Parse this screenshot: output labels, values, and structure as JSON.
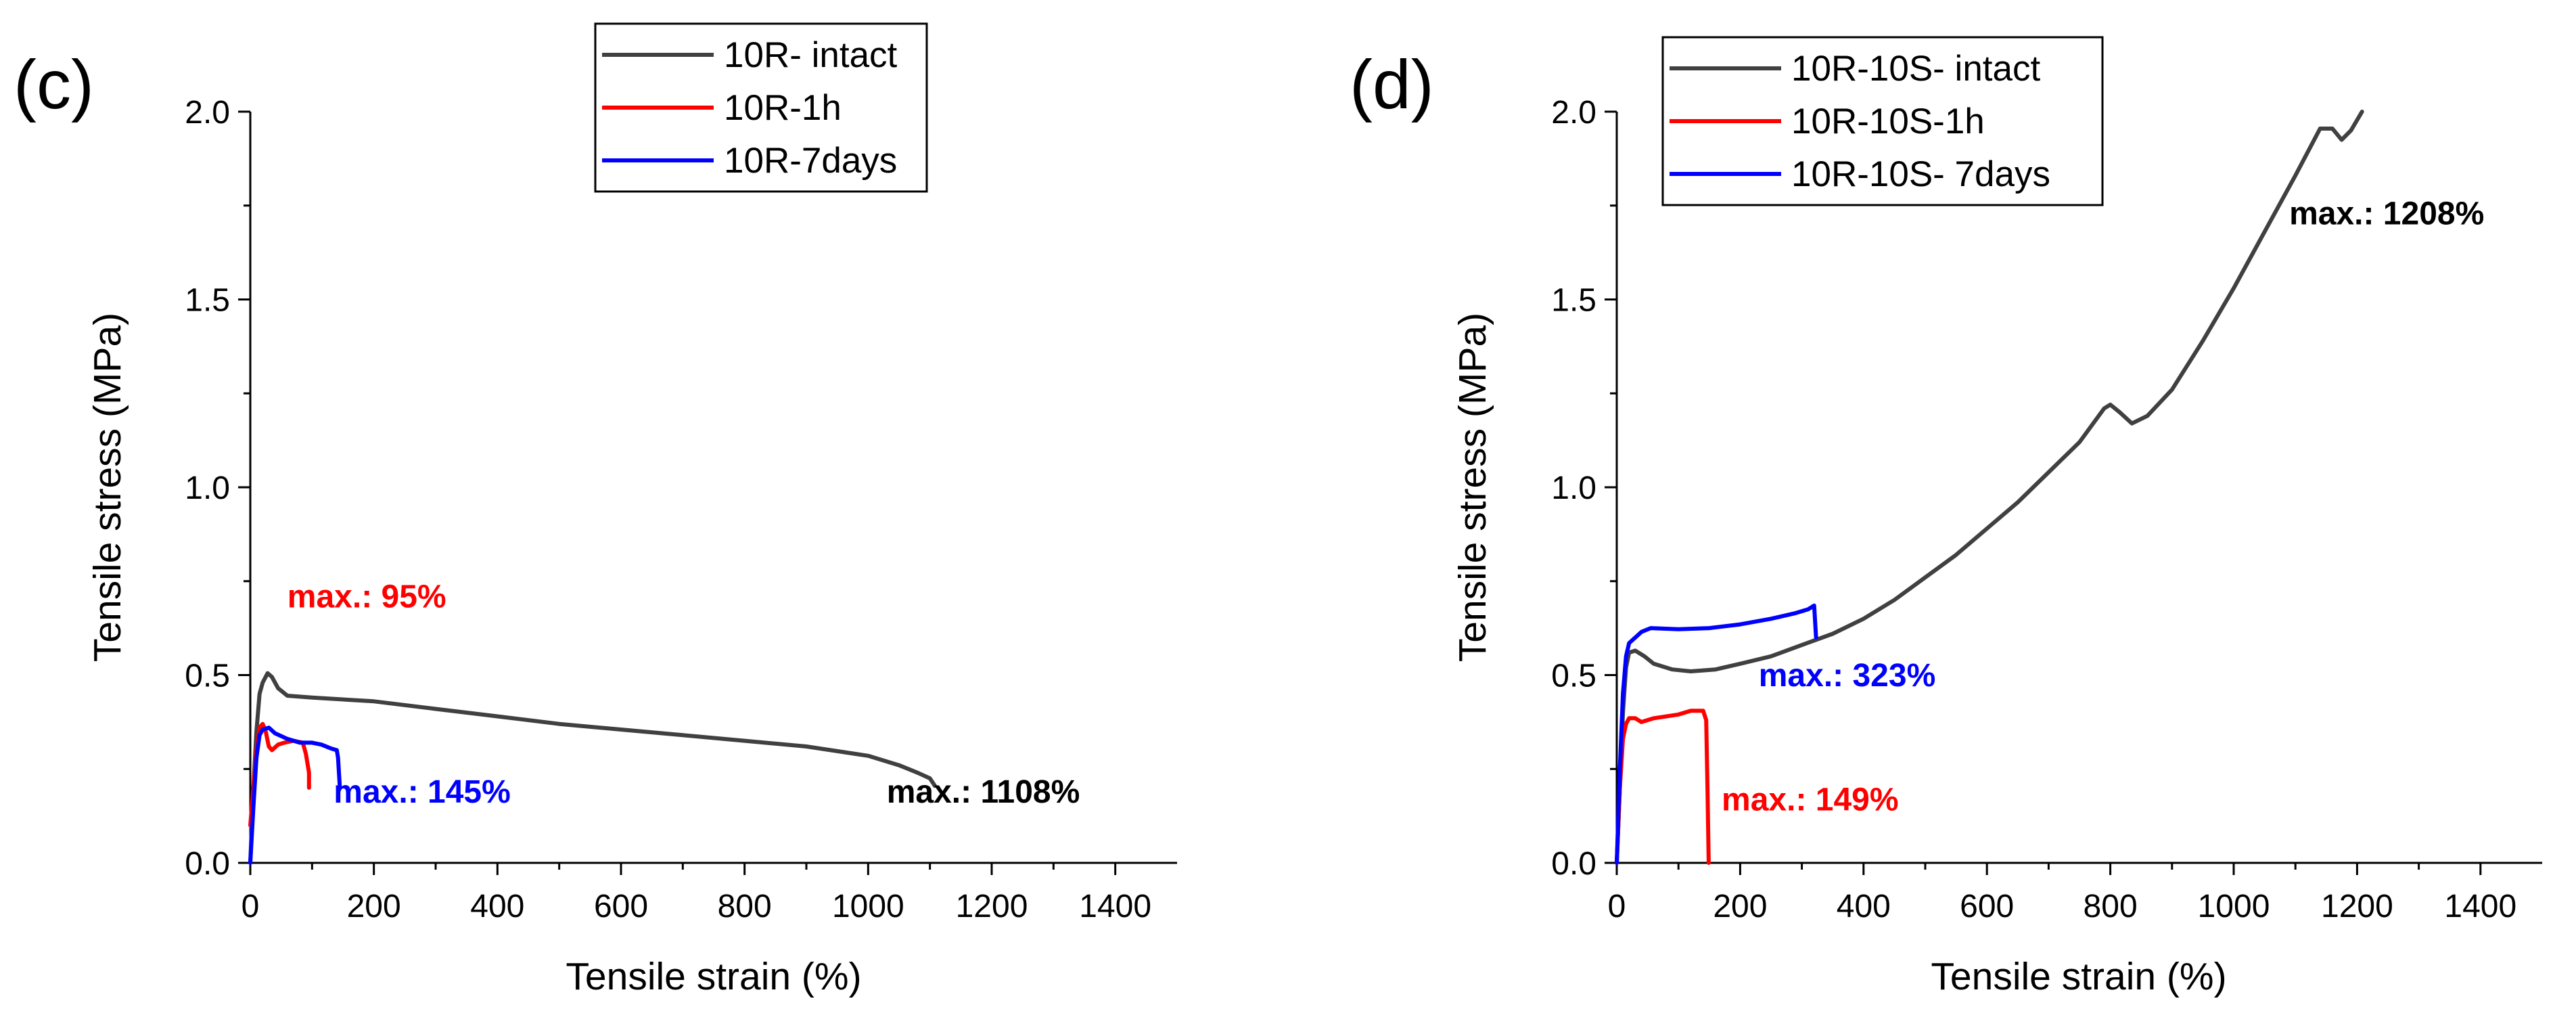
{
  "figure": {
    "chart_count": 2
  },
  "chart_data": [
    {
      "type": "line",
      "panel_label": "(c)",
      "xlabel": "Tensile strain (%)",
      "ylabel": "Tensile stress (MPa)",
      "xlim": [
        0,
        1500
      ],
      "ylim": [
        0,
        2.0
      ],
      "xticks": [
        0,
        200,
        400,
        600,
        800,
        1000,
        1200,
        1400
      ],
      "yticks": [
        0.0,
        0.5,
        1.0,
        1.5,
        2.0
      ],
      "xtick_labels": [
        "0",
        "200",
        "400",
        "600",
        "800",
        "1000",
        "1200",
        "1400"
      ],
      "ytick_labels": [
        "0.0",
        "0.5",
        "1.0",
        "1.5",
        "2.0"
      ],
      "legend_position": "top-center",
      "series": [
        {
          "name": "10R- intact",
          "color": "#404040",
          "points": [
            [
              0,
              0
            ],
            [
              5,
              0.2
            ],
            [
              10,
              0.35
            ],
            [
              15,
              0.45
            ],
            [
              20,
              0.48
            ],
            [
              28,
              0.505
            ],
            [
              35,
              0.495
            ],
            [
              45,
              0.465
            ],
            [
              60,
              0.445
            ],
            [
              100,
              0.44
            ],
            [
              200,
              0.43
            ],
            [
              300,
              0.41
            ],
            [
              400,
              0.39
            ],
            [
              500,
              0.37
            ],
            [
              600,
              0.355
            ],
            [
              700,
              0.34
            ],
            [
              800,
              0.325
            ],
            [
              900,
              0.31
            ],
            [
              1000,
              0.285
            ],
            [
              1050,
              0.26
            ],
            [
              1080,
              0.24
            ],
            [
              1100,
              0.225
            ],
            [
              1108,
              0.205
            ]
          ]
        },
        {
          "name": "10R-1h",
          "color": "#ff0000",
          "points": [
            [
              0,
              0.1
            ],
            [
              5,
              0.2
            ],
            [
              10,
              0.3
            ],
            [
              15,
              0.36
            ],
            [
              20,
              0.37
            ],
            [
              25,
              0.35
            ],
            [
              30,
              0.31
            ],
            [
              35,
              0.3
            ],
            [
              45,
              0.315
            ],
            [
              55,
              0.32
            ],
            [
              70,
              0.325
            ],
            [
              85,
              0.32
            ],
            [
              90,
              0.29
            ],
            [
              95,
              0.24
            ],
            [
              95,
              0.2
            ]
          ]
        },
        {
          "name": "10R-7days",
          "color": "#0000ff",
          "points": [
            [
              0,
              0
            ],
            [
              5,
              0.15
            ],
            [
              10,
              0.28
            ],
            [
              15,
              0.34
            ],
            [
              20,
              0.355
            ],
            [
              30,
              0.36
            ],
            [
              40,
              0.345
            ],
            [
              60,
              0.33
            ],
            [
              80,
              0.32
            ],
            [
              100,
              0.32
            ],
            [
              115,
              0.315
            ],
            [
              130,
              0.305
            ],
            [
              140,
              0.3
            ],
            [
              142,
              0.28
            ],
            [
              145,
              0.2
            ]
          ]
        }
      ],
      "annotations": [
        {
          "text": "max.: 95%",
          "x": 60,
          "y": 0.68,
          "color": "#ff0000"
        },
        {
          "text": "max.: 145%",
          "x": 135,
          "y": 0.16,
          "color": "#0000ff"
        },
        {
          "text": "max.: 1108%",
          "x": 1030,
          "y": 0.16,
          "color": "#000000"
        }
      ]
    },
    {
      "type": "line",
      "panel_label": "(d)",
      "xlabel": "Tensile strain (%)",
      "ylabel": "Tensile stress (MPa)",
      "xlim": [
        0,
        1500
      ],
      "ylim": [
        0,
        2.0
      ],
      "xticks": [
        0,
        200,
        400,
        600,
        800,
        1000,
        1200,
        1400
      ],
      "yticks": [
        0.0,
        0.5,
        1.0,
        1.5,
        2.0
      ],
      "xtick_labels": [
        "0",
        "200",
        "400",
        "600",
        "800",
        "1000",
        "1200",
        "1400"
      ],
      "ytick_labels": [
        "0.0",
        "0.5",
        "1.0",
        "1.5",
        "2.0"
      ],
      "legend_position": "top-left",
      "series": [
        {
          "name": "10R-10S- intact",
          "color": "#404040",
          "points": [
            [
              0,
              0
            ],
            [
              5,
              0.2
            ],
            [
              10,
              0.4
            ],
            [
              15,
              0.52
            ],
            [
              20,
              0.56
            ],
            [
              30,
              0.565
            ],
            [
              45,
              0.55
            ],
            [
              60,
              0.53
            ],
            [
              90,
              0.515
            ],
            [
              120,
              0.51
            ],
            [
              160,
              0.515
            ],
            [
              200,
              0.53
            ],
            [
              250,
              0.55
            ],
            [
              300,
              0.58
            ],
            [
              350,
              0.61
            ],
            [
              400,
              0.65
            ],
            [
              450,
              0.7
            ],
            [
              500,
              0.76
            ],
            [
              550,
              0.82
            ],
            [
              600,
              0.89
            ],
            [
              650,
              0.96
            ],
            [
              700,
              1.04
            ],
            [
              750,
              1.12
            ],
            [
              790,
              1.21
            ],
            [
              800,
              1.22
            ],
            [
              815,
              1.2
            ],
            [
              835,
              1.17
            ],
            [
              860,
              1.19
            ],
            [
              900,
              1.26
            ],
            [
              950,
              1.39
            ],
            [
              1000,
              1.53
            ],
            [
              1050,
              1.68
            ],
            [
              1100,
              1.83
            ],
            [
              1140,
              1.955
            ],
            [
              1160,
              1.955
            ],
            [
              1175,
              1.925
            ],
            [
              1190,
              1.95
            ],
            [
              1208,
              2.0
            ]
          ]
        },
        {
          "name": "10R-10S-1h",
          "color": "#ff0000",
          "points": [
            [
              0,
              0
            ],
            [
              5,
              0.2
            ],
            [
              10,
              0.33
            ],
            [
              15,
              0.37
            ],
            [
              20,
              0.385
            ],
            [
              30,
              0.385
            ],
            [
              40,
              0.375
            ],
            [
              60,
              0.385
            ],
            [
              100,
              0.395
            ],
            [
              120,
              0.405
            ],
            [
              140,
              0.405
            ],
            [
              145,
              0.38
            ],
            [
              147,
              0.2
            ],
            [
              149,
              0
            ]
          ]
        },
        {
          "name": "10R-10S- 7days",
          "color": "#0000ff",
          "points": [
            [
              0,
              0
            ],
            [
              5,
              0.25
            ],
            [
              10,
              0.45
            ],
            [
              15,
              0.55
            ],
            [
              20,
              0.585
            ],
            [
              30,
              0.6
            ],
            [
              40,
              0.615
            ],
            [
              55,
              0.625
            ],
            [
              100,
              0.622
            ],
            [
              150,
              0.625
            ],
            [
              200,
              0.635
            ],
            [
              250,
              0.65
            ],
            [
              290,
              0.665
            ],
            [
              310,
              0.675
            ],
            [
              320,
              0.685
            ],
            [
              323,
              0.6
            ]
          ]
        }
      ],
      "annotations": [
        {
          "text": "max.: 1208%",
          "x": 1090,
          "y": 1.7,
          "color": "#000000"
        },
        {
          "text": "max.: 323%",
          "x": 230,
          "y": 0.47,
          "color": "#0000ff"
        },
        {
          "text": "max.: 149%",
          "x": 170,
          "y": 0.14,
          "color": "#ff0000"
        }
      ]
    }
  ]
}
